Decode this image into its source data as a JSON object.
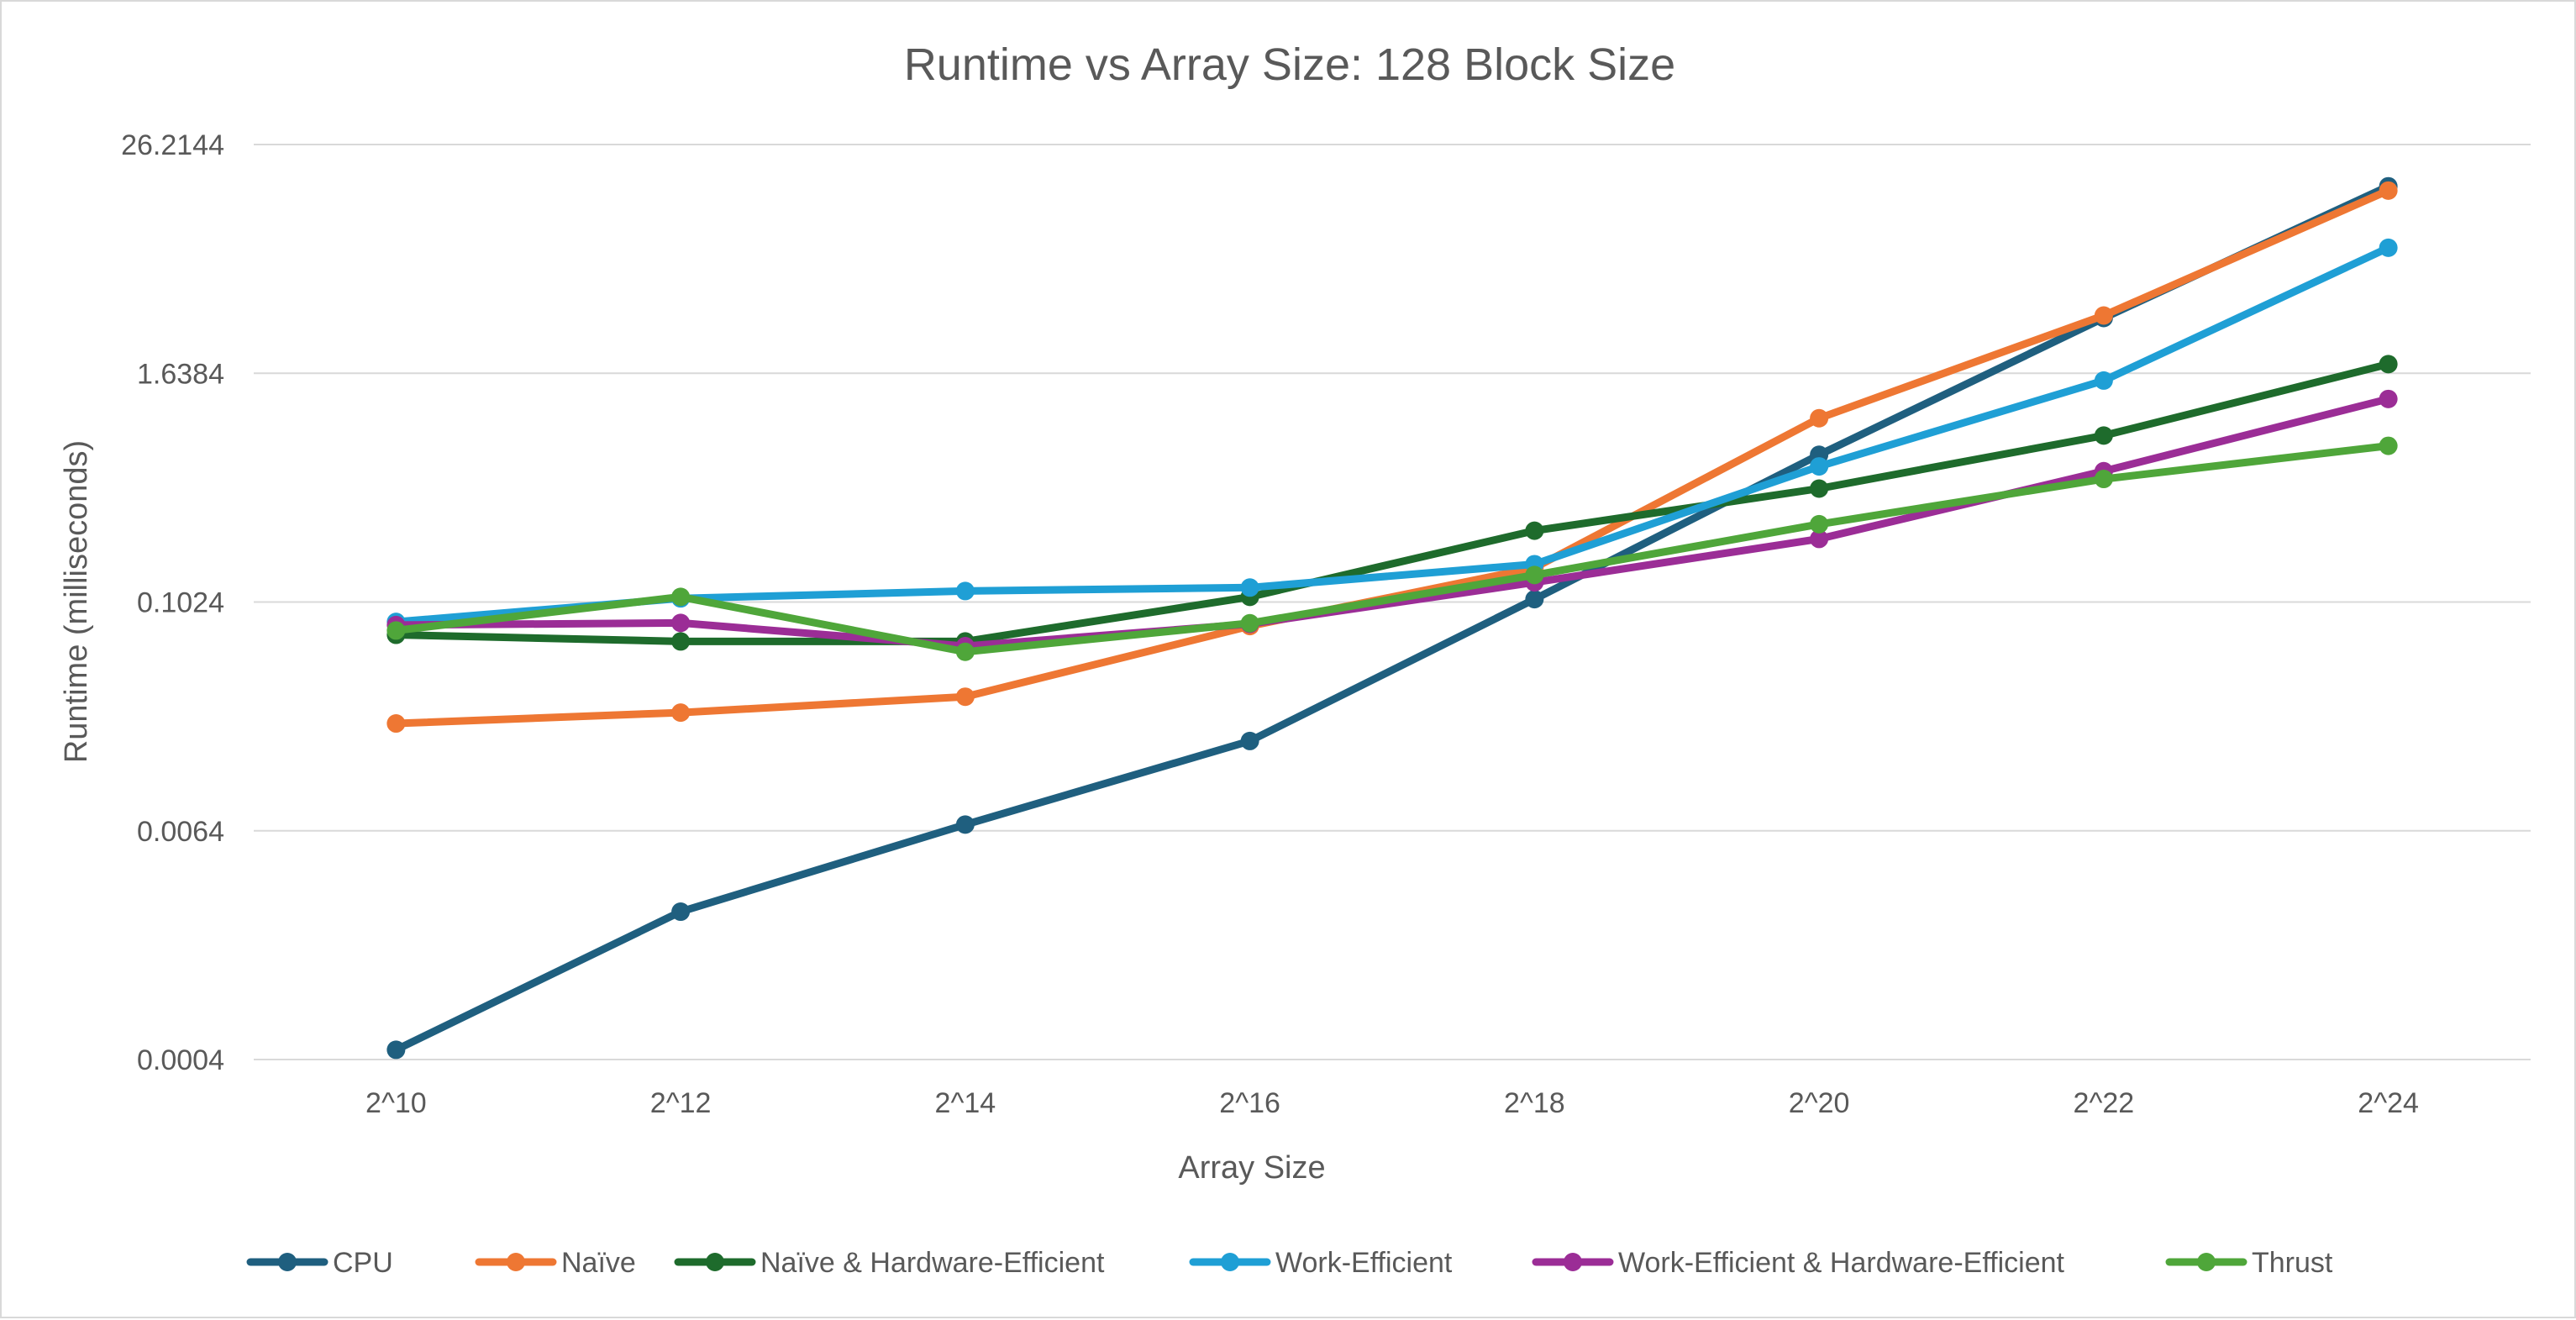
{
  "chart_data": {
    "type": "line",
    "title": "Runtime vs Array Size: 128 Block Size",
    "xlabel": "Array Size",
    "ylabel": "Runtime (milliseconds)",
    "y_scale": "log",
    "categories": [
      "2^10",
      "2^12",
      "2^14",
      "2^16",
      "2^18",
      "2^20",
      "2^22",
      "2^24"
    ],
    "y_ticks": [
      0.0004,
      0.0064,
      0.1024,
      1.6384,
      26.2144
    ],
    "y_tick_labels": [
      "0.0004",
      "0.0064",
      "0.1024",
      "1.6384",
      "26.2144"
    ],
    "ylim": [
      0.0004,
      26.2144
    ],
    "grid": true,
    "legend_position": "bottom",
    "series": [
      {
        "name": "CPU",
        "color": "#1f5f7f",
        "values": [
          0.00045,
          0.0024,
          0.0069,
          0.019,
          0.106,
          0.61,
          3.2,
          15.8
        ]
      },
      {
        "name": "Naïve",
        "color": "#ee7733",
        "values": [
          0.0235,
          0.0268,
          0.0325,
          0.0765,
          0.155,
          0.95,
          3.3,
          15.0
        ]
      },
      {
        "name": "Naïve & Hardware-Efficient",
        "color": "#1e6b2c",
        "values": [
          0.0688,
          0.0635,
          0.0635,
          0.109,
          0.243,
          0.405,
          0.77,
          1.83
        ]
      },
      {
        "name": "Work-Efficient",
        "color": "#1f9fd5",
        "values": [
          0.0805,
          0.107,
          0.117,
          0.122,
          0.162,
          0.53,
          1.5,
          7.5
        ]
      },
      {
        "name": "Work-Efficient & Hardware-Efficient",
        "color": "#9b2d96",
        "values": [
          0.0775,
          0.0795,
          0.06,
          0.0785,
          0.13,
          0.22,
          0.5,
          1.2
        ]
      },
      {
        "name": "Thrust",
        "color": "#4fa63a",
        "values": [
          0.0725,
          0.109,
          0.056,
          0.0792,
          0.142,
          0.263,
          0.455,
          0.68
        ]
      }
    ]
  }
}
